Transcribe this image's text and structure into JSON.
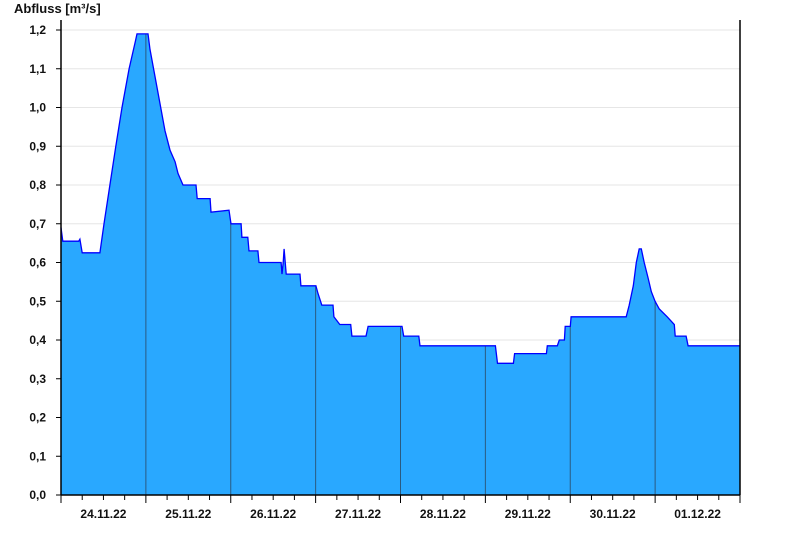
{
  "chart_data": {
    "type": "area",
    "ylabel": "Abfluss [m³/s]",
    "xlabel": "",
    "ylim": [
      0,
      1.2
    ],
    "xlim": [
      "24.11.22 00:00",
      "02.12.22 00:00"
    ],
    "y_ticks": [
      "0,0",
      "0,1",
      "0,2",
      "0,3",
      "0,4",
      "0,5",
      "0,6",
      "0,7",
      "0,8",
      "0,9",
      "1,0",
      "1,1",
      "1,2"
    ],
    "x_tick_labels": [
      "24.11.22",
      "25.11.22",
      "26.11.22",
      "27.11.22",
      "28.11.22",
      "29.11.22",
      "30.11.22",
      "01.12.22"
    ],
    "grid": "horizontal",
    "colors": {
      "fill": "#29a8ff",
      "line": "#0000ff",
      "day_lines": "#2a5a80",
      "grid": "#e6e6e6"
    },
    "points": [
      [
        "24.11.22 00:00",
        0.69
      ],
      [
        "24.11.22 00:30",
        0.655
      ],
      [
        "24.11.22 05:00",
        0.655
      ],
      [
        "24.11.22 05:20",
        0.66
      ],
      [
        "24.11.22 06:00",
        0.625
      ],
      [
        "24.11.22 10:30",
        0.625
      ],
      [
        "24.11.22 11:00",
        0.625
      ],
      [
        "24.11.22 12:10",
        0.7
      ],
      [
        "24.11.22 13:50",
        0.8
      ],
      [
        "24.11.22 15:30",
        0.9
      ],
      [
        "24.11.22 17:15",
        1.0
      ],
      [
        "24.11.22 19:15",
        1.1
      ],
      [
        "24.11.22 21:00",
        1.17
      ],
      [
        "24.11.22 21:30",
        1.19
      ],
      [
        "25.11.22 00:36",
        1.19
      ],
      [
        "25.11.22 01:10",
        1.15
      ],
      [
        "25.11.22 02:35",
        1.08
      ],
      [
        "25.11.22 04:00",
        1.01
      ],
      [
        "25.11.22 05:25",
        0.94
      ],
      [
        "25.11.22 06:50",
        0.89
      ],
      [
        "25.11.22 08:15",
        0.86
      ],
      [
        "25.11.22 09:05",
        0.83
      ],
      [
        "25.11.22 10:30",
        0.8
      ],
      [
        "25.11.22 14:10",
        0.8
      ],
      [
        "25.11.22 14:30",
        0.765
      ],
      [
        "25.11.22 18:10",
        0.765
      ],
      [
        "25.11.22 18:25",
        0.73
      ],
      [
        "25.11.22 23:30",
        0.735
      ],
      [
        "26.11.22 00:05",
        0.7
      ],
      [
        "26.11.22 02:55",
        0.7
      ],
      [
        "26.11.22 03:10",
        0.665
      ],
      [
        "26.11.22 04:50",
        0.665
      ],
      [
        "26.11.22 05:10",
        0.63
      ],
      [
        "26.11.22 07:40",
        0.63
      ],
      [
        "26.11.22 08:00",
        0.6
      ],
      [
        "26.11.22 14:15",
        0.6
      ],
      [
        "26.11.22 14:30",
        0.57
      ],
      [
        "26.11.22 14:50",
        0.6
      ],
      [
        "26.11.22 15:05",
        0.635
      ],
      [
        "26.11.22 15:40",
        0.57
      ],
      [
        "26.11.22 19:35",
        0.57
      ],
      [
        "26.11.22 19:50",
        0.54
      ],
      [
        "27.11.22 00:05",
        0.54
      ],
      [
        "27.11.22 00:40",
        0.52
      ],
      [
        "27.11.22 01:45",
        0.49
      ],
      [
        "27.11.22 04:55",
        0.49
      ],
      [
        "27.11.22 05:10",
        0.46
      ],
      [
        "27.11.22 06:50",
        0.44
      ],
      [
        "27.11.22 09:55",
        0.44
      ],
      [
        "27.11.22 10:15",
        0.41
      ],
      [
        "27.11.22 14:15",
        0.41
      ],
      [
        "27.11.22 14:50",
        0.435
      ],
      [
        "28.11.22 00:25",
        0.435
      ],
      [
        "28.11.22 00:55",
        0.41
      ],
      [
        "28.11.22 05:10",
        0.41
      ],
      [
        "28.11.22 05:30",
        0.385
      ],
      [
        "29.11.22 02:50",
        0.385
      ],
      [
        "29.11.22 03:25",
        0.34
      ],
      [
        "29.11.22 07:55",
        0.34
      ],
      [
        "29.11.22 08:15",
        0.365
      ],
      [
        "29.11.22 17:15",
        0.365
      ],
      [
        "29.11.22 17:30",
        0.385
      ],
      [
        "29.11.22 20:20",
        0.385
      ],
      [
        "29.11.22 20:55",
        0.4
      ],
      [
        "29.11.22 22:20",
        0.4
      ],
      [
        "29.11.22 22:35",
        0.435
      ],
      [
        "30.11.22 00:00",
        0.435
      ],
      [
        "30.11.22 00:15",
        0.46
      ],
      [
        "30.11.22 15:50",
        0.46
      ],
      [
        "30.11.22 16:40",
        0.49
      ],
      [
        "30.11.22 17:50",
        0.54
      ],
      [
        "30.11.22 18:40",
        0.6
      ],
      [
        "30.11.22 19:30",
        0.635
      ],
      [
        "30.11.22 20:05",
        0.635
      ],
      [
        "30.11.22 20:55",
        0.6
      ],
      [
        "30.11.22 22:00",
        0.56
      ],
      [
        "30.11.22 22:55",
        0.525
      ],
      [
        "01.12.22 00:00",
        0.5
      ],
      [
        "01.12.22 01:10",
        0.48
      ],
      [
        "01.12.22 03:25",
        0.46
      ],
      [
        "01.12.22 05:25",
        0.44
      ],
      [
        "01.12.22 05:40",
        0.41
      ],
      [
        "01.12.22 08:45",
        0.41
      ],
      [
        "01.12.22 09:20",
        0.385
      ],
      [
        "02.12.22 00:00",
        0.385
      ]
    ]
  }
}
